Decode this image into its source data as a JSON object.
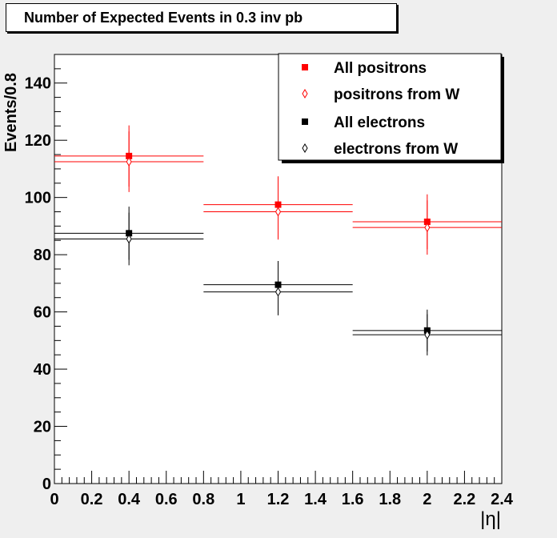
{
  "chart_data": {
    "type": "scatter",
    "title": "Number of Expected Events in 0.3 inv pb",
    "xlabel": "|η|",
    "ylabel": "Events/0.8",
    "xlim": [
      0,
      2.4
    ],
    "ylim": [
      0,
      150
    ],
    "x_ticks": [
      "0",
      "0.2",
      "0.4",
      "0.6",
      "0.8",
      "1",
      "1.2",
      "1.4",
      "1.6",
      "1.8",
      "2",
      "2.2",
      "2.4"
    ],
    "y_ticks": [
      "0",
      "20",
      "40",
      "60",
      "80",
      "100",
      "120",
      "140"
    ],
    "grid": false,
    "legend_position": "top-right",
    "bins": [
      [
        0,
        0.8
      ],
      [
        0.8,
        1.6
      ],
      [
        1.6,
        2.4
      ]
    ],
    "series": [
      {
        "name": "All positrons",
        "color": "#ff0000",
        "marker": "filled-square",
        "x": [
          0.4,
          1.2,
          2.0
        ],
        "values": [
          114.5,
          97.5,
          91.5
        ],
        "errors": [
          10.7,
          9.9,
          9.6
        ]
      },
      {
        "name": "positrons from W",
        "color": "#ff0000",
        "marker": "open-diamond",
        "x": [
          0.4,
          1.2,
          2.0
        ],
        "values": [
          112.5,
          95.0,
          89.5
        ],
        "errors": [
          10.6,
          9.7,
          9.5
        ]
      },
      {
        "name": "All electrons",
        "color": "#000000",
        "marker": "filled-square",
        "x": [
          0.4,
          1.2,
          2.0
        ],
        "values": [
          87.5,
          69.5,
          53.5
        ],
        "errors": [
          9.3,
          8.3,
          7.3
        ]
      },
      {
        "name": "electrons from W",
        "color": "#000000",
        "marker": "open-diamond",
        "x": [
          0.4,
          1.2,
          2.0
        ],
        "values": [
          85.5,
          67.0,
          52.0
        ],
        "errors": [
          9.2,
          8.2,
          7.2
        ]
      }
    ]
  }
}
